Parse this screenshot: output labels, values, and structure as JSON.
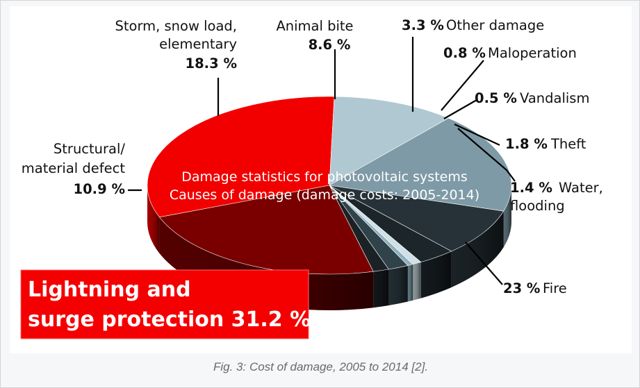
{
  "chart_data": {
    "type": "pie",
    "title": "Damage statistics for photovoltaic systems",
    "subtitle": "Causes of damage (damage costs: 2005-2014)",
    "unit": "%",
    "slices": [
      {
        "label": "Lightning and surge protection",
        "value": 31.2,
        "value_text": "31.2 %",
        "color": "#f20000"
      },
      {
        "label": "Structural/ material defect",
        "value": 10.9,
        "value_text": "10.9 %",
        "color": "#b0c8d2"
      },
      {
        "label": "Storm, snow load, elementary",
        "value": 18.3,
        "value_text": "18.3 %",
        "color": "#7e9aa6"
      },
      {
        "label": "Animal bite",
        "value": 8.6,
        "value_text": "8.6 %",
        "color": "#263238"
      },
      {
        "label": "Other damage",
        "value": 3.3,
        "value_text": "3.3 %",
        "color": "#1c2529"
      },
      {
        "label": "Maloperation",
        "value": 0.8,
        "value_text": "0.8 %",
        "color": "#cfe0e7"
      },
      {
        "label": "Vandalism",
        "value": 0.5,
        "value_text": "0.5 %",
        "color": "#8fb0bd"
      },
      {
        "label": "Theft",
        "value": 1.8,
        "value_text": "1.8 %",
        "color": "#30424a"
      },
      {
        "label": "Water, flooding",
        "value": 1.4,
        "value_text": "1.4 %",
        "color": "#1a2226"
      },
      {
        "label": "Fire",
        "value": 23,
        "value_text": "23 %",
        "color": "#7a0000"
      }
    ]
  },
  "labels": {
    "storm_line1": "Storm, snow load,",
    "storm_line2": "elementary",
    "storm_value": "18.3 %",
    "animal_name": "Animal bite",
    "animal_value": "8.6 %",
    "other_value": "3.3 %",
    "other_name": "Other damage",
    "malop_value": "0.8 %",
    "malop_name": "Maloperation",
    "vandal_value": "0.5 %",
    "vandal_name": "Vandalism",
    "theft_value": "1.8 %",
    "theft_name": "Theft",
    "water_value": "1.4 %",
    "water_name_line1": "Water,",
    "water_name_line2": "flooding",
    "struct_line1": "Structural/",
    "struct_line2": "material defect",
    "struct_value": "10.9 %",
    "fire_value": "23 %",
    "fire_name": "Fire"
  },
  "callout": {
    "line1": "Lightning and",
    "line2": "surge protection 31.2 %"
  },
  "caption": "Fig. 3: Cost of damage, 2005 to 2014 [2]."
}
